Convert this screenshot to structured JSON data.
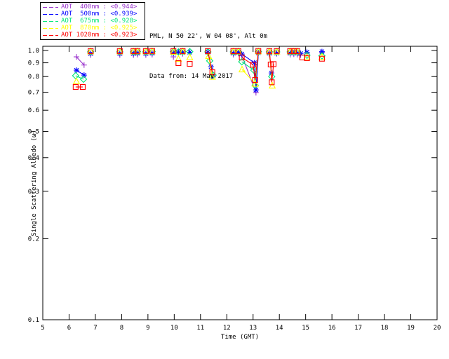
{
  "header": {
    "station_line": "PML, N 50 22', W 04 08', Alt 0m",
    "data_line": "Data from: 14 May 2017"
  },
  "legend": {
    "separator": " : ",
    "items": [
      {
        "label": "AOT  400nm",
        "value": "<0.944>",
        "color": "#9932CC",
        "marker": "plus"
      },
      {
        "label": "AOT  500nm",
        "value": "<0.939>",
        "color": "#0000FF",
        "marker": "asterisk"
      },
      {
        "label": "AOT  675nm",
        "value": "<0.928>",
        "color": "#00E678",
        "marker": "diamond"
      },
      {
        "label": "AOT  870nm",
        "value": "<0.925>",
        "color": "#FFFF00",
        "marker": "triangle"
      },
      {
        "label": "AOT 1020nm",
        "value": "<0.923>",
        "color": "#FF0000",
        "marker": "square"
      }
    ]
  },
  "chart_data": {
    "type": "scatter",
    "title": "",
    "xlabel": "Time (GMT)",
    "ylabel": "Single Scattering Albedo (ω̃)",
    "xlim": [
      5,
      20
    ],
    "ylim": [
      0.1,
      1.0366
    ],
    "yscale": "log",
    "grid": false,
    "legend_position": "top-left-outside",
    "xticks": [
      {
        "v": 5,
        "label": "5"
      },
      {
        "v": 6,
        "label": "6"
      },
      {
        "v": 7,
        "label": "7"
      },
      {
        "v": 8,
        "label": "8"
      },
      {
        "v": 9,
        "label": "9"
      },
      {
        "v": 10,
        "label": "10"
      },
      {
        "v": 11,
        "label": "11"
      },
      {
        "v": 12,
        "label": "12"
      },
      {
        "v": 13,
        "label": "13"
      },
      {
        "v": 14,
        "label": "14"
      },
      {
        "v": 15,
        "label": "15"
      },
      {
        "v": 16,
        "label": "16"
      },
      {
        "v": 17,
        "label": "17"
      },
      {
        "v": 18,
        "label": "18"
      },
      {
        "v": 19,
        "label": "19"
      },
      {
        "v": 20,
        "label": "20"
      }
    ],
    "yticks": [
      {
        "v": 1.0,
        "label": "1.0"
      },
      {
        "v": 0.9,
        "label": "0.9"
      },
      {
        "v": 0.8,
        "label": "0.8"
      },
      {
        "v": 0.7,
        "label": "0.7"
      },
      {
        "v": 0.6,
        "label": "0.6"
      },
      {
        "v": 0.5,
        "label": "0.5"
      },
      {
        "v": 0.4,
        "label": "0.4"
      },
      {
        "v": 0.3,
        "label": "0.3"
      },
      {
        "v": 0.2,
        "label": "0.2"
      },
      {
        "v": 0.1,
        "label": "0.1"
      }
    ],
    "series": [
      {
        "name": "AOT 400nm",
        "color": "#9932CC",
        "marker": "plus",
        "mean_label": "<0.944>",
        "segments": [
          [
            [
              6.28,
              0.947
            ],
            [
              6.57,
              0.883
            ]
          ],
          [
            [
              6.82,
              0.962
            ]
          ],
          [
            [
              7.93,
              0.962
            ]
          ],
          [
            [
              8.45,
              0.962
            ]
          ],
          [
            [
              8.6,
              0.965
            ]
          ],
          [
            [
              8.92,
              0.962
            ]
          ],
          [
            [
              9.16,
              0.965
            ]
          ],
          [
            [
              9.97,
              0.947
            ]
          ],
          [
            [
              10.32,
              0.972
            ]
          ],
          [
            [
              11.28,
              0.975
            ],
            [
              11.48,
              0.8
            ]
          ],
          [
            [
              12.25,
              0.965
            ]
          ],
          [
            [
              12.44,
              0.975
            ]
          ],
          [
            [
              12.57,
              0.96
            ],
            [
              13.11,
              0.697
            ],
            [
              13.2,
              0.975
            ]
          ],
          [
            [
              13.62,
              0.965
            ]
          ],
          [
            [
              13.9,
              0.972
            ]
          ],
          [
            [
              14.41,
              0.965
            ]
          ],
          [
            [
              14.55,
              0.968
            ]
          ],
          [
            [
              14.68,
              0.965
            ]
          ],
          [
            [
              14.81,
              0.962
            ]
          ],
          [
            [
              15.05,
              0.972
            ]
          ],
          [
            [
              15.62,
              0.985
            ]
          ]
        ]
      },
      {
        "name": "AOT 500nm",
        "color": "#0000FF",
        "marker": "asterisk",
        "mean_label": "<0.939>",
        "segments": [
          [
            [
              6.28,
              0.845
            ],
            [
              6.57,
              0.81
            ]
          ],
          [
            [
              6.82,
              0.975
            ]
          ],
          [
            [
              7.93,
              0.975
            ]
          ],
          [
            [
              8.45,
              0.975
            ]
          ],
          [
            [
              8.6,
              0.978
            ]
          ],
          [
            [
              8.92,
              0.975
            ]
          ],
          [
            [
              9.16,
              0.978
            ]
          ],
          [
            [
              9.97,
              0.977
            ]
          ],
          [
            [
              10.16,
              0.985
            ]
          ],
          [
            [
              10.32,
              0.982
            ]
          ],
          [
            [
              10.59,
              0.985
            ]
          ],
          [
            [
              11.28,
              0.985
            ],
            [
              11.4,
              0.87
            ],
            [
              11.48,
              0.805
            ]
          ],
          [
            [
              12.25,
              0.978
            ]
          ],
          [
            [
              12.44,
              0.982
            ]
          ],
          [
            [
              12.57,
              0.97
            ],
            [
              13.05,
              0.9
            ],
            [
              13.11,
              0.714
            ],
            [
              13.2,
              0.98
            ]
          ],
          [
            [
              13.62,
              0.978
            ],
            [
              13.7,
              0.825
            ]
          ],
          [
            [
              13.9,
              0.978
            ]
          ],
          [
            [
              14.41,
              0.978
            ]
          ],
          [
            [
              14.55,
              0.98
            ]
          ],
          [
            [
              14.68,
              0.978
            ]
          ],
          [
            [
              14.81,
              0.975
            ]
          ],
          [
            [
              15.05,
              0.985
            ]
          ],
          [
            [
              15.62,
              0.99
            ]
          ]
        ]
      },
      {
        "name": "AOT 675nm",
        "color": "#00E678",
        "marker": "diamond",
        "mean_label": "<0.928>",
        "segments": [
          [
            [
              6.25,
              0.806
            ],
            [
              6.55,
              0.782
            ]
          ],
          [
            [
              6.82,
              0.988
            ]
          ],
          [
            [
              7.93,
              0.988
            ]
          ],
          [
            [
              8.45,
              0.988
            ]
          ],
          [
            [
              8.6,
              0.99
            ]
          ],
          [
            [
              8.92,
              0.988
            ]
          ],
          [
            [
              9.16,
              0.99
            ]
          ],
          [
            [
              9.97,
              0.99
            ]
          ],
          [
            [
              10.16,
              0.988
            ]
          ],
          [
            [
              10.32,
              0.99
            ]
          ],
          [
            [
              10.59,
              0.99
            ]
          ],
          [
            [
              11.28,
              0.988
            ],
            [
              11.35,
              0.915
            ],
            [
              11.48,
              0.81
            ]
          ],
          [
            [
              12.25,
              0.988
            ]
          ],
          [
            [
              12.44,
              0.99
            ]
          ],
          [
            [
              12.57,
              0.908
            ],
            [
              13.03,
              0.845
            ],
            [
              13.08,
              0.743
            ],
            [
              13.2,
              0.99
            ]
          ],
          [
            [
              13.62,
              0.988
            ],
            [
              13.71,
              0.8
            ]
          ],
          [
            [
              13.9,
              0.988
            ]
          ],
          [
            [
              14.41,
              0.988
            ]
          ],
          [
            [
              14.55,
              0.99
            ]
          ],
          [
            [
              14.68,
              0.988
            ]
          ],
          [
            [
              15.05,
              0.96
            ]
          ],
          [
            [
              15.62,
              0.955
            ]
          ]
        ]
      },
      {
        "name": "AOT 870nm",
        "color": "#FFFF00",
        "marker": "triangle",
        "mean_label": "<0.925>",
        "segments": [
          [
            [
              6.28,
              0.768
            ]
          ],
          [
            [
              6.82,
              0.992
            ]
          ],
          [
            [
              7.93,
              0.992
            ]
          ],
          [
            [
              8.45,
              0.992
            ]
          ],
          [
            [
              8.6,
              0.993
            ]
          ],
          [
            [
              8.92,
              0.992
            ]
          ],
          [
            [
              9.16,
              0.993
            ]
          ],
          [
            [
              9.97,
              0.988
            ]
          ],
          [
            [
              10.16,
              0.931
            ]
          ],
          [
            [
              10.32,
              0.992
            ]
          ],
          [
            [
              10.59,
              0.943
            ]
          ],
          [
            [
              11.31,
              0.953
            ],
            [
              11.45,
              0.798
            ]
          ],
          [
            [
              12.25,
              0.992
            ]
          ],
          [
            [
              12.44,
              0.992
            ]
          ],
          [
            [
              12.58,
              0.85
            ],
            [
              13.08,
              0.752
            ],
            [
              13.2,
              0.992
            ]
          ],
          [
            [
              13.62,
              0.992
            ],
            [
              13.73,
              0.74
            ]
          ],
          [
            [
              13.9,
              0.99
            ]
          ],
          [
            [
              14.41,
              0.992
            ]
          ],
          [
            [
              14.55,
              0.992
            ]
          ],
          [
            [
              14.68,
              0.992
            ]
          ],
          [
            [
              15.05,
              0.945
            ]
          ],
          [
            [
              15.62,
              0.945
            ]
          ]
        ]
      },
      {
        "name": "AOT 1020nm",
        "color": "#FF0000",
        "marker": "square",
        "mean_label": "<0.923>",
        "segments": [
          [
            [
              6.25,
              0.732
            ],
            [
              6.52,
              0.732
            ]
          ],
          [
            [
              6.82,
              0.995
            ]
          ],
          [
            [
              7.93,
              0.995
            ]
          ],
          [
            [
              8.45,
              0.995
            ]
          ],
          [
            [
              8.6,
              0.996
            ]
          ],
          [
            [
              8.92,
              0.995
            ]
          ],
          [
            [
              9.16,
              0.996
            ]
          ],
          [
            [
              9.97,
              0.995
            ]
          ],
          [
            [
              10.16,
              0.898
            ]
          ],
          [
            [
              10.32,
              0.995
            ]
          ],
          [
            [
              10.59,
              0.892
            ]
          ],
          [
            [
              11.28,
              0.995
            ],
            [
              11.45,
              0.83
            ]
          ],
          [
            [
              12.25,
              0.995
            ]
          ],
          [
            [
              12.44,
              0.995
            ]
          ],
          [
            [
              12.57,
              0.942
            ],
            [
              13.0,
              0.885
            ],
            [
              13.08,
              0.777
            ],
            [
              13.2,
              0.996
            ]
          ],
          [
            [
              13.62,
              0.995
            ],
            [
              13.67,
              0.887
            ],
            [
              13.71,
              0.762
            ],
            [
              13.78,
              0.89
            ]
          ],
          [
            [
              13.9,
              0.995
            ]
          ],
          [
            [
              14.41,
              0.995
            ]
          ],
          [
            [
              14.55,
              0.995
            ]
          ],
          [
            [
              14.68,
              0.995
            ]
          ],
          [
            [
              14.87,
              0.942
            ]
          ],
          [
            [
              15.05,
              0.936
            ]
          ],
          [
            [
              15.62,
              0.932
            ]
          ]
        ]
      }
    ]
  }
}
